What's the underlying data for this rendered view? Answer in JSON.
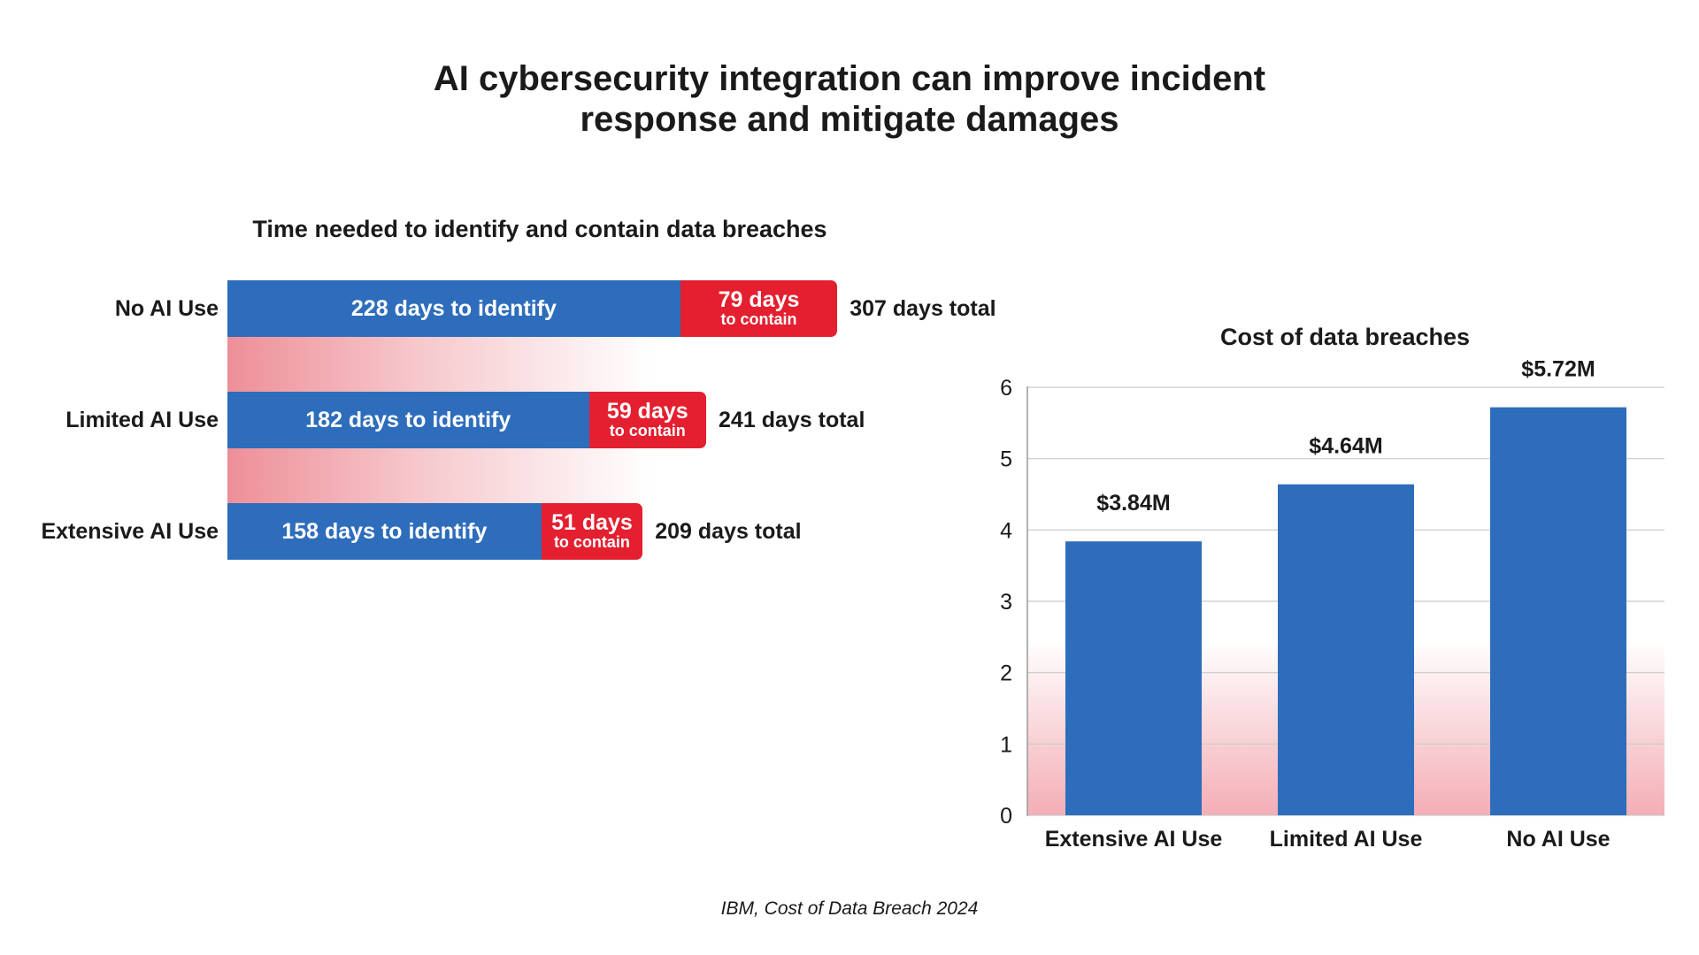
{
  "title_lines": [
    "AI cybersecurity integration can improve incident",
    "response and mitigate damages"
  ],
  "source": "IBM, Cost of Data Breach 2024",
  "colors": {
    "identify": "#2e6dbb",
    "contain": "#e41f2f",
    "fade": "#ee8f98",
    "text": "#1a1a1a"
  },
  "chart_data": [
    {
      "type": "bar",
      "orientation": "horizontal",
      "stacked": true,
      "title": "Time needed to identify and contain data breaches",
      "categories": [
        "No AI Use",
        "Limited AI Use",
        "Extensive AI Use"
      ],
      "series": [
        {
          "name": "days to identify",
          "values": [
            228,
            182,
            158
          ]
        },
        {
          "name": "days to contain",
          "values": [
            79,
            59,
            51
          ]
        }
      ],
      "totals": [
        307,
        241,
        209
      ],
      "identify_labels": [
        "228 days to identify",
        "182 days to identify",
        "158 days to identify"
      ],
      "contain_labels": [
        "79 days",
        "59 days",
        "51 days"
      ],
      "contain_sublabel": "to contain",
      "total_labels": [
        "307 days total",
        "241 days total",
        "209 days total"
      ]
    },
    {
      "type": "bar",
      "title": "Cost of data breaches",
      "categories": [
        "Extensive AI Use",
        "Limited AI Use",
        "No AI Use"
      ],
      "values": [
        3.84,
        4.64,
        5.72
      ],
      "value_labels": [
        "$3.84M",
        "$4.64M",
        "$5.72M"
      ],
      "ylim": [
        0,
        6
      ],
      "yticks": [
        "0",
        "1",
        "2",
        "3",
        "4",
        "5",
        "6"
      ],
      "grid": true,
      "xlabel": "",
      "ylabel": ""
    }
  ]
}
